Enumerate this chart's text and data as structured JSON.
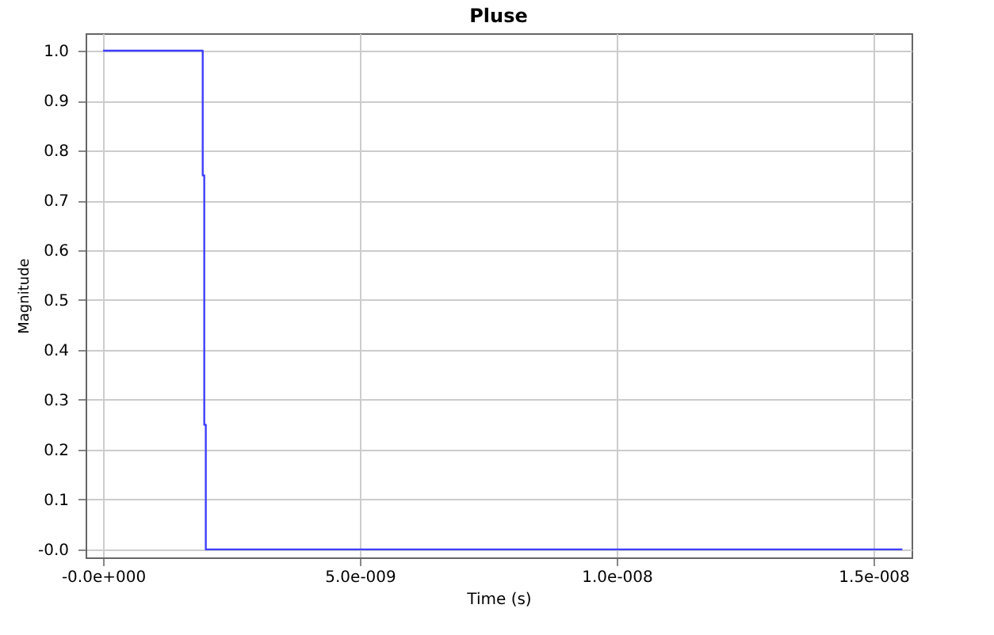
{
  "chart_data": {
    "type": "line",
    "title": "Pluse",
    "xlabel": "Time (s)",
    "ylabel": "Magnitude",
    "x": [
      0,
      1.94e-09,
      1.94e-09,
      1.97e-09,
      1.97e-09,
      2e-09,
      2e-09,
      1.556e-08
    ],
    "series": [
      {
        "color": "#3f3fff",
        "values": [
          1,
          1,
          0.75,
          0.75,
          0.25,
          0.25,
          0,
          0
        ]
      }
    ],
    "xlim": [
      -3.4e-10,
      1.574e-08
    ],
    "ylim": [
      -0.016,
      1.035
    ],
    "xticks": [
      {
        "value": 0,
        "label": "-0.0e+000"
      },
      {
        "value": 5e-09,
        "label": "5.0e-009"
      },
      {
        "value": 1e-08,
        "label": "1.0e-008"
      },
      {
        "value": 1.5e-08,
        "label": "1.5e-008"
      }
    ],
    "yticks": [
      {
        "value": 0,
        "label": "-0.0"
      },
      {
        "value": 0.1,
        "label": "0.1"
      },
      {
        "value": 0.2,
        "label": "0.2"
      },
      {
        "value": 0.3,
        "label": "0.3"
      },
      {
        "value": 0.4,
        "label": "0.4"
      },
      {
        "value": 0.5,
        "label": "0.5"
      },
      {
        "value": 0.6,
        "label": "0.6"
      },
      {
        "value": 0.7,
        "label": "0.7"
      },
      {
        "value": 0.8,
        "label": "0.8"
      },
      {
        "value": 0.9,
        "label": "0.9"
      },
      {
        "value": 1,
        "label": "1.0"
      }
    ],
    "grid": true
  }
}
